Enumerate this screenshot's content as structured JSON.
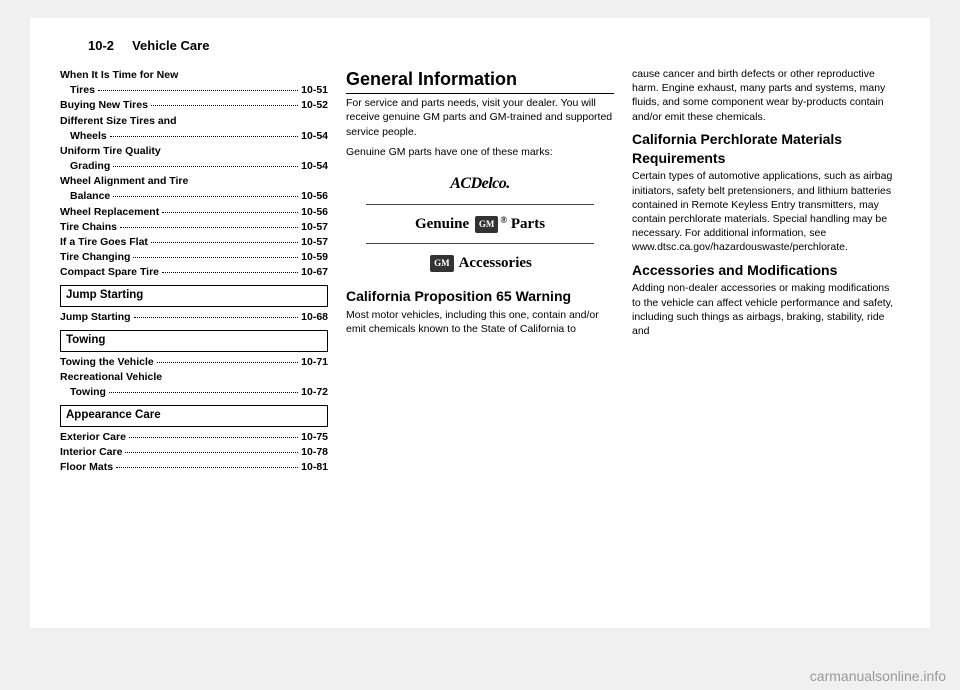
{
  "header": {
    "page_section": "10-2",
    "title": "Vehicle Care"
  },
  "col1": {
    "toc_first": [
      {
        "label": "When It Is Time for New",
        "cont": "Tires",
        "page": "10-51"
      },
      {
        "label": "Buying New Tires",
        "page": "10-52"
      },
      {
        "label": "Different Size Tires and",
        "cont": "Wheels",
        "page": "10-54"
      },
      {
        "label": "Uniform Tire Quality",
        "cont": "Grading",
        "page": "10-54"
      },
      {
        "label": "Wheel Alignment and Tire",
        "cont": "Balance",
        "page": "10-56"
      },
      {
        "label": "Wheel Replacement",
        "page": "10-56"
      },
      {
        "label": "Tire Chains",
        "page": "10-57"
      },
      {
        "label": "If a Tire Goes Flat",
        "page": "10-57"
      },
      {
        "label": "Tire Changing",
        "page": "10-59"
      },
      {
        "label": "Compact Spare Tire",
        "page": "10-67"
      }
    ],
    "sections": [
      {
        "heading": "Jump Starting",
        "items": [
          {
            "label": "Jump Starting",
            "page": "10-68"
          }
        ]
      },
      {
        "heading": "Towing",
        "items": [
          {
            "label": "Towing the Vehicle",
            "page": "10-71"
          },
          {
            "label": "Recreational Vehicle",
            "cont": "Towing",
            "page": "10-72"
          }
        ]
      },
      {
        "heading": "Appearance Care",
        "items": [
          {
            "label": "Exterior Care",
            "page": "10-75"
          },
          {
            "label": "Interior Care",
            "page": "10-78"
          },
          {
            "label": "Floor Mats",
            "page": "10-81"
          }
        ]
      }
    ]
  },
  "col2": {
    "h_general": "General Information",
    "p1": "For service and parts needs, visit your dealer. You will receive genuine GM parts and GM-trained and supported service people.",
    "p2": "Genuine GM parts have one of these marks:",
    "logo_acdelco": "ACDelco.",
    "logo_genuine": "Genuine",
    "logo_gm": "GM",
    "logo_reg": "®",
    "logo_parts": "Parts",
    "logo_accessories": "Accessories",
    "h_cal65": "California Proposition 65 Warning",
    "p3": "Most motor vehicles, including this one, contain and/or emit chemicals known to the State of California to"
  },
  "col3": {
    "p1": "cause cancer and birth defects or other reproductive harm. Engine exhaust, many parts and systems, many fluids, and some component wear by-products contain and/or emit these chemicals.",
    "h_perc": "California Perchlorate Materials Requirements",
    "p2": "Certain types of automotive applications, such as airbag initiators, safety belt pretensioners, and lithium batteries contained in Remote Keyless Entry transmitters, may contain perchlorate materials. Special handling may be necessary. For additional information, see www.dtsc.ca.gov/hazardouswaste/perchlorate.",
    "h_acc": "Accessories and Modifications",
    "p3": "Adding non-dealer accessories or making modifications to the vehicle can affect vehicle performance and safety, including such things as airbags, braking, stability, ride and"
  },
  "watermark": "carmanualsonline.info"
}
